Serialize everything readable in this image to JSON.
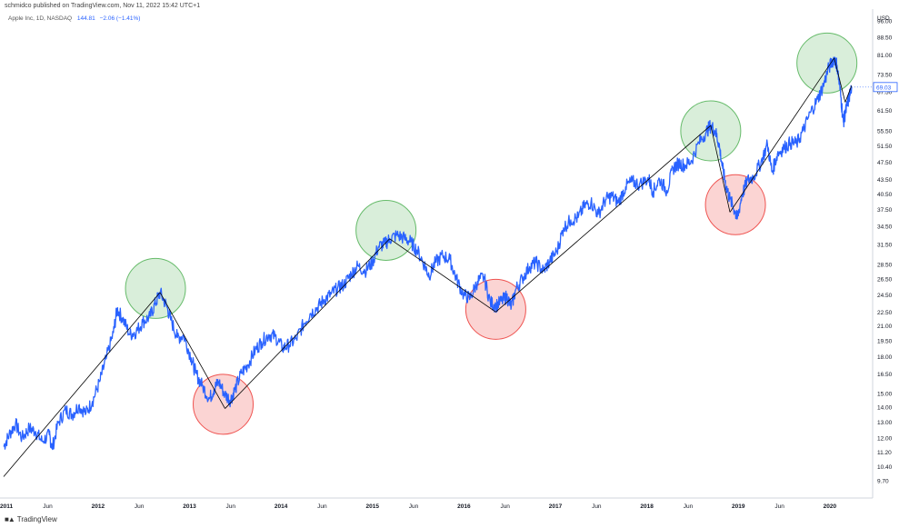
{
  "publisher_line": "schmidco published on TradingView.com, Nov 11, 2022 15:42 UTC+1",
  "legend": {
    "symbol": "Apple Inc, 1D, NASDAQ",
    "price": "144.81",
    "change": "−2.06 (−1.41%)"
  },
  "footer": {
    "brand": "TradingView",
    "logo": "tradingview-logo-icon"
  },
  "colors": {
    "price_line": "#2962ff",
    "trend_line": "#000000",
    "peak": "#66bb6a",
    "trough": "#ef5350"
  },
  "chart_data": {
    "type": "line",
    "title": "Apple Inc, 1D, NASDAQ",
    "currency": "USD",
    "scale": "log",
    "ylim": [
      8.9,
      100
    ],
    "xlim": [
      2011.0,
      2020.5
    ],
    "y_ticks": [
      "96.00",
      "88.50",
      "81.00",
      "73.50",
      "67.50",
      "61.50",
      "55.50",
      "51.50",
      "47.50",
      "43.50",
      "40.50",
      "37.50",
      "34.50",
      "31.50",
      "28.50",
      "26.50",
      "24.50",
      "22.50",
      "21.00",
      "19.50",
      "18.00",
      "16.50",
      "15.00",
      "14.00",
      "13.00",
      "12.00",
      "11.20",
      "10.40",
      "9.70"
    ],
    "x_ticks": [
      {
        "label": "2011",
        "t": 2011.0
      },
      {
        "label": "Jun",
        "t": 2011.45
      },
      {
        "label": "2012",
        "t": 2012.0
      },
      {
        "label": "Jun",
        "t": 2012.45
      },
      {
        "label": "2013",
        "t": 2013.0
      },
      {
        "label": "Jun",
        "t": 2013.45
      },
      {
        "label": "2014",
        "t": 2014.0
      },
      {
        "label": "Jun",
        "t": 2014.45
      },
      {
        "label": "2015",
        "t": 2015.0
      },
      {
        "label": "Jun",
        "t": 2015.45
      },
      {
        "label": "2016",
        "t": 2016.0
      },
      {
        "label": "Jun",
        "t": 2016.45
      },
      {
        "label": "2017",
        "t": 2017.0
      },
      {
        "label": "Jun",
        "t": 2017.45
      },
      {
        "label": "2018",
        "t": 2018.0
      },
      {
        "label": "Jun",
        "t": 2018.45
      },
      {
        "label": "2019",
        "t": 2019.0
      },
      {
        "label": "Jun",
        "t": 2019.45
      },
      {
        "label": "2020",
        "t": 2020.0
      }
    ],
    "last_price_label": "69.03",
    "price_series": [
      [
        2011.0,
        11.5
      ],
      [
        2011.06,
        12.2
      ],
      [
        2011.13,
        12.9
      ],
      [
        2011.2,
        12.0
      ],
      [
        2011.28,
        12.6
      ],
      [
        2011.35,
        12.4
      ],
      [
        2011.42,
        11.8
      ],
      [
        2011.5,
        12.2
      ],
      [
        2011.53,
        11.4
      ],
      [
        2011.6,
        13.0
      ],
      [
        2011.68,
        13.8
      ],
      [
        2011.75,
        13.5
      ],
      [
        2011.82,
        14.1
      ],
      [
        2011.9,
        13.6
      ],
      [
        2011.97,
        14.4
      ],
      [
        2012.05,
        15.9
      ],
      [
        2012.12,
        17.8
      ],
      [
        2012.2,
        20.3
      ],
      [
        2012.24,
        22.8
      ],
      [
        2012.3,
        21.8
      ],
      [
        2012.38,
        20.1
      ],
      [
        2012.45,
        20.4
      ],
      [
        2012.52,
        21.4
      ],
      [
        2012.6,
        22.0
      ],
      [
        2012.66,
        23.5
      ],
      [
        2012.71,
        24.8
      ],
      [
        2012.78,
        23.2
      ],
      [
        2012.83,
        21.6
      ],
      [
        2012.9,
        19.8
      ],
      [
        2012.97,
        20.0
      ],
      [
        2013.05,
        17.9
      ],
      [
        2013.1,
        16.6
      ],
      [
        2013.17,
        15.6
      ],
      [
        2013.25,
        14.6
      ],
      [
        2013.3,
        15.3
      ],
      [
        2013.35,
        15.9
      ],
      [
        2013.42,
        14.9
      ],
      [
        2013.48,
        14.5
      ],
      [
        2013.53,
        15.3
      ],
      [
        2013.6,
        16.6
      ],
      [
        2013.67,
        17.3
      ],
      [
        2013.75,
        18.6
      ],
      [
        2013.82,
        19.4
      ],
      [
        2013.9,
        20.1
      ],
      [
        2013.97,
        19.9
      ],
      [
        2014.05,
        18.8
      ],
      [
        2014.12,
        19.1
      ],
      [
        2014.2,
        19.7
      ],
      [
        2014.28,
        21.2
      ],
      [
        2014.35,
        22.3
      ],
      [
        2014.43,
        23.0
      ],
      [
        2014.5,
        23.9
      ],
      [
        2014.58,
        24.6
      ],
      [
        2014.65,
        25.3
      ],
      [
        2014.72,
        25.8
      ],
      [
        2014.8,
        27.2
      ],
      [
        2014.87,
        28.3
      ],
      [
        2014.95,
        27.6
      ],
      [
        2015.03,
        28.8
      ],
      [
        2015.1,
        31.2
      ],
      [
        2015.17,
        31.6
      ],
      [
        2015.22,
        32.4
      ],
      [
        2015.3,
        33.0
      ],
      [
        2015.38,
        32.5
      ],
      [
        2015.45,
        31.9
      ],
      [
        2015.52,
        30.6
      ],
      [
        2015.6,
        28.5
      ],
      [
        2015.65,
        27.0
      ],
      [
        2015.72,
        28.8
      ],
      [
        2015.8,
        29.8
      ],
      [
        2015.88,
        29.2
      ],
      [
        2015.95,
        26.5
      ],
      [
        2016.03,
        24.5
      ],
      [
        2016.1,
        24.1
      ],
      [
        2016.18,
        26.2
      ],
      [
        2016.25,
        26.8
      ],
      [
        2016.32,
        23.6
      ],
      [
        2016.38,
        23.2
      ],
      [
        2016.45,
        23.8
      ],
      [
        2016.5,
        24.3
      ],
      [
        2016.55,
        23.1
      ],
      [
        2016.6,
        25.2
      ],
      [
        2016.67,
        26.6
      ],
      [
        2016.75,
        28.2
      ],
      [
        2016.82,
        28.8
      ],
      [
        2016.9,
        27.6
      ],
      [
        2016.97,
        29.0
      ],
      [
        2017.05,
        30.5
      ],
      [
        2017.12,
        34.2
      ],
      [
        2017.2,
        35.6
      ],
      [
        2017.28,
        36.0
      ],
      [
        2017.35,
        38.2
      ],
      [
        2017.42,
        38.9
      ],
      [
        2017.5,
        36.6
      ],
      [
        2017.58,
        39.4
      ],
      [
        2017.65,
        40.1
      ],
      [
        2017.72,
        38.8
      ],
      [
        2017.8,
        42.0
      ],
      [
        2017.87,
        43.1
      ],
      [
        2017.95,
        42.5
      ],
      [
        2018.05,
        43.8
      ],
      [
        2018.1,
        41.0
      ],
      [
        2018.17,
        43.6
      ],
      [
        2018.25,
        41.2
      ],
      [
        2018.32,
        46.1
      ],
      [
        2018.38,
        47.2
      ],
      [
        2018.45,
        46.7
      ],
      [
        2018.52,
        47.9
      ],
      [
        2018.6,
        52.3
      ],
      [
        2018.68,
        55.2
      ],
      [
        2018.73,
        57.0
      ],
      [
        2018.78,
        55.4
      ],
      [
        2018.82,
        52.0
      ],
      [
        2018.86,
        46.0
      ],
      [
        2018.9,
        42.0
      ],
      [
        2018.94,
        39.5
      ],
      [
        2019.0,
        37.0
      ],
      [
        2019.02,
        35.8
      ],
      [
        2019.07,
        40.2
      ],
      [
        2019.13,
        43.3
      ],
      [
        2019.2,
        44.2
      ],
      [
        2019.28,
        47.5
      ],
      [
        2019.35,
        51.9
      ],
      [
        2019.4,
        45.2
      ],
      [
        2019.46,
        49.5
      ],
      [
        2019.53,
        51.0
      ],
      [
        2019.6,
        52.3
      ],
      [
        2019.67,
        52.1
      ],
      [
        2019.74,
        55.5
      ],
      [
        2019.82,
        60.8
      ],
      [
        2019.9,
        65.0
      ],
      [
        2019.96,
        69.5
      ],
      [
        2020.02,
        76.0
      ],
      [
        2020.08,
        79.8
      ],
      [
        2020.11,
        77.0
      ],
      [
        2020.15,
        66.5
      ],
      [
        2020.18,
        58.0
      ],
      [
        2020.2,
        60.5
      ],
      [
        2020.23,
        64.0
      ],
      [
        2020.27,
        69.03
      ]
    ],
    "trend_lines": [
      [
        [
          2011.0,
          9.9
        ],
        [
          2012.71,
          24.8
        ]
      ],
      [
        [
          2012.71,
          24.8
        ],
        [
          2013.42,
          13.9
        ]
      ],
      [
        [
          2013.42,
          13.9
        ],
        [
          2015.22,
          32.4
        ]
      ],
      [
        [
          2015.22,
          32.4
        ],
        [
          2016.38,
          22.5
        ]
      ],
      [
        [
          2016.38,
          22.5
        ],
        [
          2018.73,
          57.0
        ]
      ],
      [
        [
          2018.73,
          57.0
        ],
        [
          2018.94,
          37.0
        ]
      ],
      [
        [
          2018.94,
          37.0
        ],
        [
          2020.08,
          79.8
        ]
      ],
      [
        [
          2020.08,
          79.8
        ],
        [
          2020.2,
          64.0
        ]
      ],
      [
        [
          2020.2,
          64.0
        ],
        [
          2020.27,
          69.5
        ]
      ]
    ],
    "annotations": [
      {
        "kind": "peak",
        "t": 2012.66,
        "v": 25.3
      },
      {
        "kind": "trough",
        "t": 2013.4,
        "v": 14.2
      },
      {
        "kind": "peak",
        "t": 2015.18,
        "v": 33.8
      },
      {
        "kind": "trough",
        "t": 2016.38,
        "v": 22.8
      },
      {
        "kind": "peak",
        "t": 2018.73,
        "v": 55.5
      },
      {
        "kind": "trough",
        "t": 2019.0,
        "v": 38.4
      },
      {
        "kind": "peak",
        "t": 2020.0,
        "v": 77.8
      }
    ]
  }
}
